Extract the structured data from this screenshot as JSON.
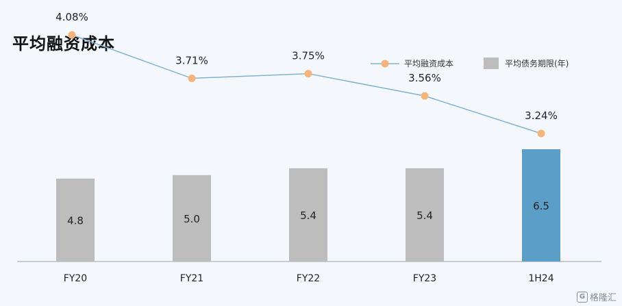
{
  "chart_data": {
    "type": "bar+line",
    "title": "平均融资成本",
    "categories": [
      "FY20",
      "FY21",
      "FY22",
      "FY23",
      "1H24"
    ],
    "series": [
      {
        "name": "平均融资成本",
        "type": "line",
        "values": [
          4.08,
          3.71,
          3.75,
          3.56,
          3.24
        ],
        "labels": [
          "4.08%",
          "3.71%",
          "3.75%",
          "3.56%",
          "3.24%"
        ],
        "color": "#7fb2d4",
        "marker_color": "#f5b57a"
      },
      {
        "name": "平均债务期限(年)",
        "type": "bar",
        "values": [
          4.8,
          5.0,
          5.4,
          5.4,
          6.5
        ],
        "labels": [
          "4.8",
          "5.0",
          "5.4",
          "5.4",
          "6.5"
        ],
        "color": "#bdbdbd",
        "highlight_color": "#5b9fc9"
      }
    ],
    "legend": "top-right",
    "grid": false
  },
  "watermark": "格隆汇"
}
